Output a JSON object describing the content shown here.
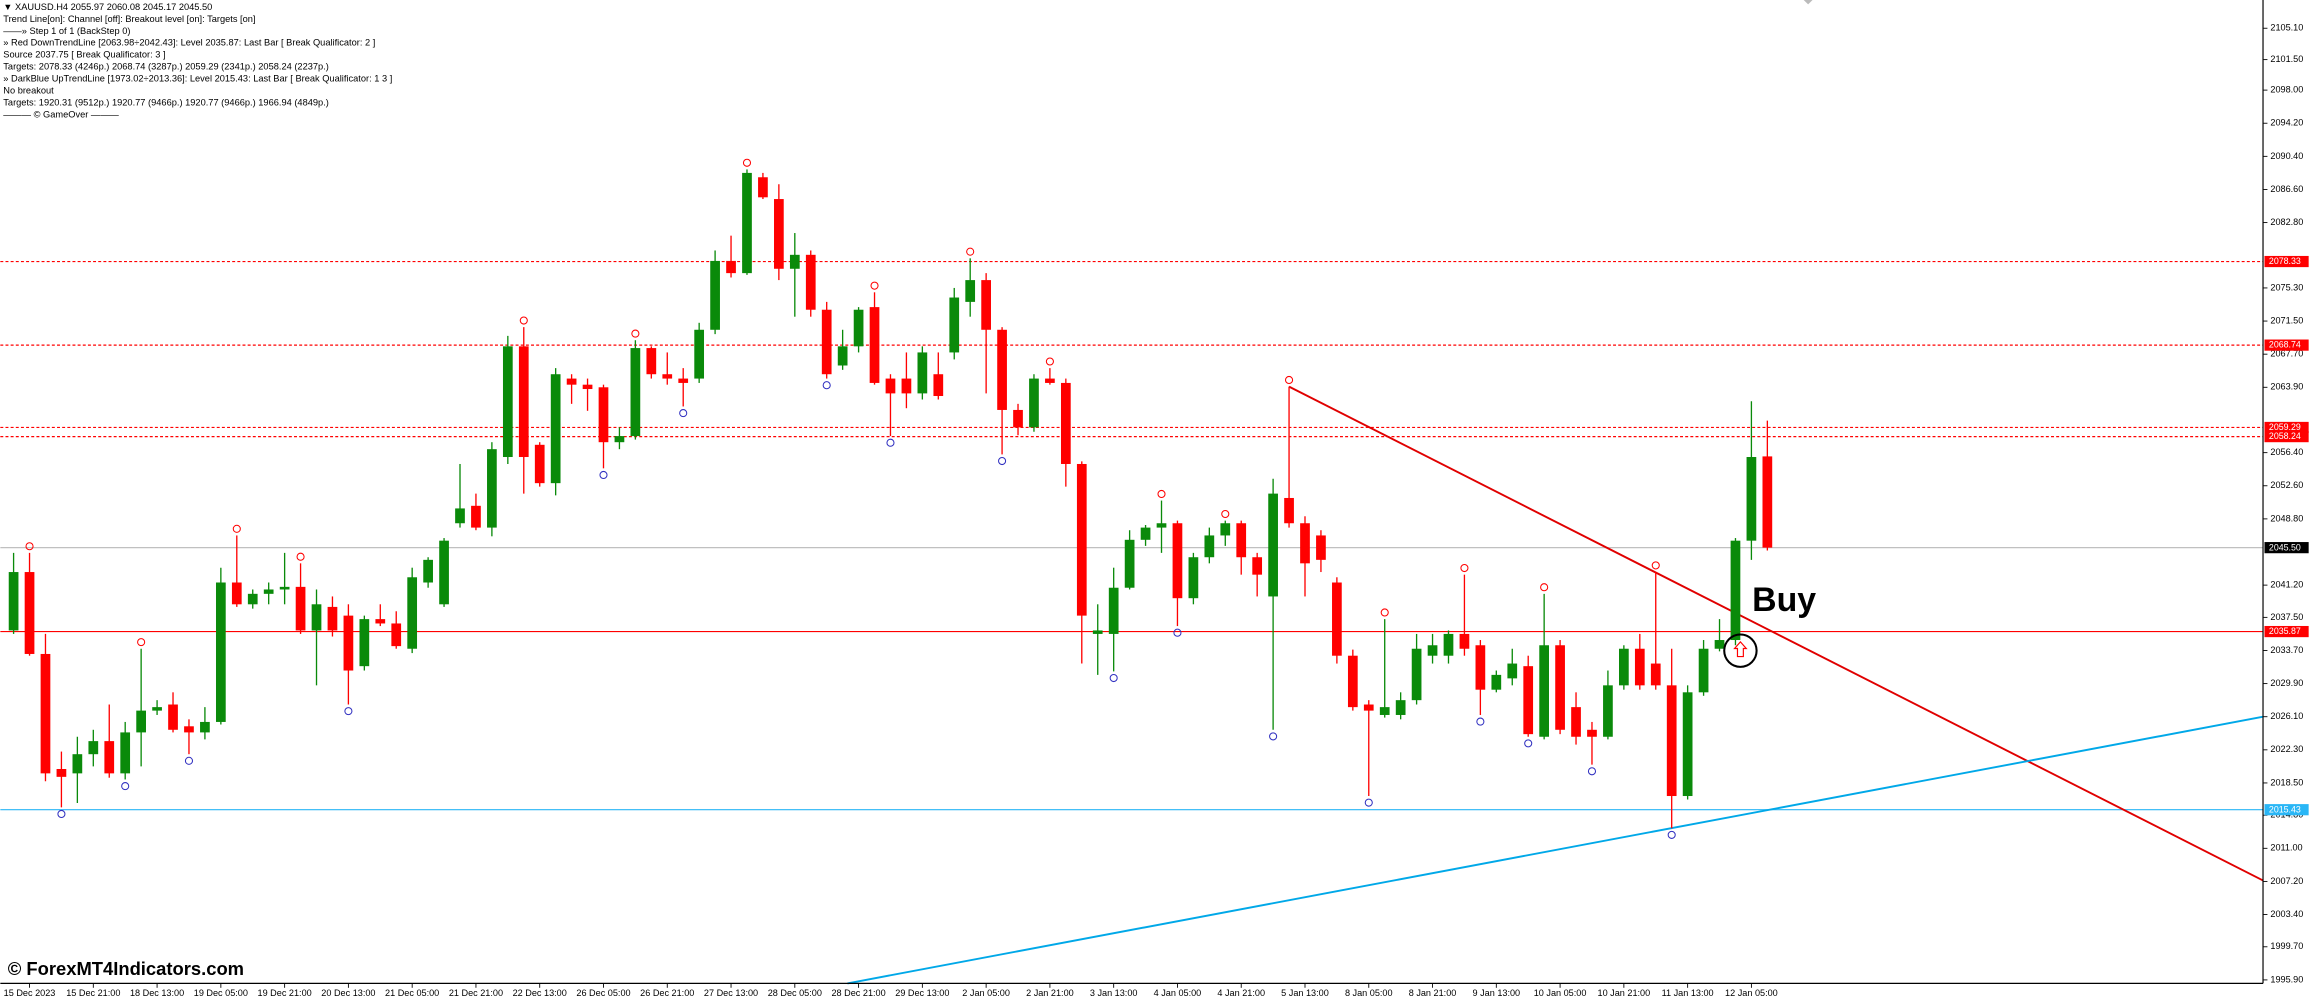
{
  "header": {
    "symbol_line": "▼ XAUUSD.H4  2055.97 2060.08 2045.17 2045.50",
    "info_lines": [
      "Trend Line[on]: Channel [off]: Breakout level [on]: Targets [on]",
      "——» Step 1 of 1 (BackStep 0)",
      "» Red DownTrendLine [2063.98÷2042.43]: Level 2035.87: Last Bar [ Break Qualificator: 2 ]",
      "Source 2037.75 [ Break Qualificator: 3 ]",
      "Targets: 2078.33 (4246p.) 2068.74 (3287p.) 2059.29 (2341p.) 2058.24 (2237p.)",
      "» DarkBlue UpTrendLine [1973.02÷2013.36]: Level 2015.43: Last Bar [ Break Qualificator: 1 3 ]",
      "No breakout",
      "Targets: 1920.31 (9512p.) 1920.77 (9466p.) 1920.77 (9466p.) 1966.94 (4849p.)",
      "——— © GameOver ———"
    ]
  },
  "watermark": "© ForexMT4Indicators.com",
  "chart_data": {
    "type": "candlestick",
    "annotation": "Buy",
    "up_color": "#0a8a0a",
    "down_color": "#ff0000",
    "categories": [
      null,
      "15 Dec 2023",
      null,
      null,
      null,
      "15 Dec 21:00",
      null,
      null,
      null,
      "18 Dec 13:00",
      null,
      null,
      null,
      "19 Dec 05:00",
      null,
      null,
      null,
      "19 Dec 21:00",
      null,
      null,
      null,
      "20 Dec 13:00",
      null,
      null,
      null,
      "21 Dec 05:00",
      null,
      null,
      null,
      "21 Dec 21:00",
      null,
      null,
      null,
      "22 Dec 13:00",
      null,
      null,
      null,
      "26 Dec 05:00",
      null,
      null,
      null,
      "26 Dec 21:00",
      null,
      null,
      null,
      "27 Dec 13:00",
      null,
      null,
      null,
      "28 Dec 05:00",
      null,
      null,
      null,
      "28 Dec 21:00",
      null,
      null,
      null,
      "29 Dec 13:00",
      null,
      null,
      null,
      "2 Jan 05:00",
      null,
      null,
      null,
      "2 Jan 21:00",
      null,
      null,
      null,
      "3 Jan 13:00",
      null,
      null,
      null,
      "4 Jan 05:00",
      null,
      null,
      null,
      "4 Jan 21:00",
      null,
      null,
      null,
      "5 Jan 13:00",
      null,
      null,
      null,
      "8 Jan 05:00",
      null,
      null,
      null,
      "8 Jan 21:00",
      null,
      null,
      null,
      "9 Jan 13:00",
      null,
      null,
      null,
      "10 Jan 05:00",
      null,
      null,
      null,
      "10 Jan 21:00",
      null,
      null,
      null,
      "11 Jan 13:00",
      null,
      null,
      null,
      "12 Jan 05:00",
      null
    ],
    "open": [
      2036.0,
      2042.7,
      2033.3,
      2020.1,
      2019.6,
      2021.8,
      2023.3,
      2019.6,
      2024.3,
      2026.8,
      2027.5,
      2025.0,
      2024.3,
      2025.5,
      2041.5,
      2039.0,
      2040.2,
      2040.7,
      2041.0,
      2036.0,
      2038.7,
      2037.7,
      2031.9,
      2037.3,
      2036.8,
      2033.9,
      2041.5,
      2039.0,
      2048.3,
      2050.3,
      2047.8,
      2055.9,
      2068.6,
      2057.3,
      2052.9,
      2064.9,
      2064.2,
      2063.9,
      2057.6,
      2058.3,
      2068.4,
      2065.4,
      2064.9,
      2064.9,
      2070.5,
      2078.4,
      2077.0,
      2088.0,
      2085.5,
      2077.5,
      2079.1,
      2072.8,
      2066.4,
      2068.6,
      2073.1,
      2064.9,
      2064.9,
      2063.2,
      2065.4,
      2067.9,
      2073.7,
      2076.2,
      2070.5,
      2061.3,
      2059.3,
      2064.9,
      2064.4,
      2055.1,
      2035.6,
      2035.6,
      2040.9,
      2046.4,
      2047.8,
      2048.3,
      2039.7,
      2044.4,
      2046.9,
      2048.3,
      2044.4,
      2039.9,
      2051.2,
      2048.3,
      2046.9,
      2041.5,
      2033.1,
      2027.5,
      2026.3,
      2026.3,
      2028.0,
      2033.1,
      2033.1,
      2035.6,
      2034.3,
      2029.2,
      2030.5,
      2031.9,
      2023.8,
      2034.3,
      2027.2,
      2024.6,
      2023.8,
      2029.7,
      2033.9,
      2032.2,
      2029.7,
      2017.0,
      2028.9,
      2033.9,
      2034.9,
      2046.3,
      2055.97
    ],
    "high": [
      2044.9,
      2044.9,
      2035.6,
      2022.1,
      2023.8,
      2024.6,
      2027.5,
      2025.5,
      2033.9,
      2028.0,
      2028.9,
      2025.8,
      2027.2,
      2043.2,
      2046.9,
      2040.7,
      2041.5,
      2044.9,
      2043.7,
      2040.7,
      2039.9,
      2039.0,
      2037.7,
      2039.0,
      2038.2,
      2043.2,
      2044.4,
      2046.6,
      2055.1,
      2051.7,
      2057.6,
      2069.8,
      2070.8,
      2057.6,
      2066.1,
      2065.4,
      2064.9,
      2064.2,
      2059.3,
      2069.3,
      2068.6,
      2067.9,
      2066.1,
      2071.3,
      2079.6,
      2081.3,
      2088.9,
      2088.5,
      2087.2,
      2081.6,
      2079.6,
      2073.7,
      2070.5,
      2073.1,
      2074.8,
      2065.4,
      2067.9,
      2068.6,
      2067.9,
      2075.3,
      2078.7,
      2077.0,
      2070.8,
      2062.0,
      2065.4,
      2066.1,
      2064.9,
      2055.4,
      2039.0,
      2043.2,
      2047.5,
      2048.1,
      2050.9,
      2048.6,
      2044.9,
      2047.8,
      2048.6,
      2048.6,
      2044.9,
      2053.4,
      2063.98,
      2049.1,
      2047.5,
      2042.1,
      2033.8,
      2028.0,
      2037.3,
      2028.9,
      2035.6,
      2035.6,
      2036.0,
      2042.4,
      2034.9,
      2031.4,
      2033.9,
      2033.1,
      2040.2,
      2034.9,
      2028.9,
      2025.5,
      2031.4,
      2034.3,
      2035.6,
      2042.7,
      2033.9,
      2029.7,
      2034.9,
      2037.3,
      2046.6,
      2062.3,
      2060.08
    ],
    "low": [
      2035.6,
      2033.1,
      2018.7,
      2015.7,
      2016.2,
      2020.4,
      2019.1,
      2018.9,
      2020.4,
      2026.3,
      2024.3,
      2021.8,
      2023.5,
      2025.2,
      2038.7,
      2038.5,
      2039.0,
      2039.0,
      2035.6,
      2029.7,
      2035.3,
      2027.5,
      2031.4,
      2036.5,
      2033.9,
      2033.4,
      2040.9,
      2038.7,
      2047.8,
      2047.5,
      2046.8,
      2055.1,
      2051.7,
      2052.5,
      2051.5,
      2062.0,
      2061.2,
      2054.6,
      2056.8,
      2057.9,
      2064.9,
      2064.2,
      2061.7,
      2064.4,
      2070.0,
      2076.5,
      2076.8,
      2085.5,
      2076.2,
      2072.0,
      2072.0,
      2064.9,
      2065.9,
      2067.9,
      2064.2,
      2058.3,
      2061.5,
      2062.5,
      2062.5,
      2067.1,
      2072.0,
      2063.2,
      2056.2,
      2058.4,
      2058.8,
      2064.2,
      2052.5,
      2032.2,
      2030.9,
      2031.3,
      2040.7,
      2045.7,
      2044.9,
      2036.5,
      2039.0,
      2043.7,
      2045.7,
      2042.4,
      2039.9,
      2024.6,
      2047.8,
      2039.9,
      2042.7,
      2032.2,
      2026.8,
      2017.0,
      2026.0,
      2025.8,
      2027.5,
      2032.2,
      2032.2,
      2033.1,
      2026.3,
      2028.9,
      2029.7,
      2023.8,
      2023.5,
      2024.1,
      2022.9,
      2020.6,
      2023.5,
      2029.2,
      2029.2,
      2029.2,
      2013.3,
      2016.6,
      2028.5,
      2033.6,
      2034.3,
      2044.1,
      2045.17
    ],
    "close": [
      2042.7,
      2033.3,
      2019.6,
      2019.2,
      2021.8,
      2023.3,
      2019.6,
      2024.3,
      2026.8,
      2027.2,
      2024.6,
      2024.3,
      2025.5,
      2041.5,
      2039.0,
      2040.2,
      2040.7,
      2041.0,
      2036.0,
      2039.0,
      2036.0,
      2031.4,
      2037.3,
      2036.8,
      2034.2,
      2042.1,
      2044.1,
      2046.3,
      2050.0,
      2047.8,
      2056.8,
      2068.6,
      2055.9,
      2052.9,
      2065.4,
      2064.2,
      2063.7,
      2057.6,
      2058.3,
      2068.4,
      2065.4,
      2064.9,
      2064.4,
      2070.5,
      2078.4,
      2077.0,
      2088.5,
      2085.7,
      2077.5,
      2079.1,
      2072.8,
      2065.4,
      2068.6,
      2072.8,
      2064.4,
      2063.2,
      2063.2,
      2067.9,
      2062.9,
      2074.2,
      2076.2,
      2070.5,
      2061.3,
      2059.3,
      2064.9,
      2064.4,
      2055.1,
      2037.7,
      2036.0,
      2040.9,
      2046.4,
      2047.8,
      2048.3,
      2039.7,
      2044.4,
      2046.9,
      2048.3,
      2044.4,
      2042.4,
      2051.7,
      2048.3,
      2043.7,
      2044.1,
      2033.1,
      2027.2,
      2026.8,
      2027.2,
      2028.0,
      2033.9,
      2034.3,
      2035.6,
      2033.9,
      2029.2,
      2030.9,
      2032.2,
      2024.1,
      2034.3,
      2024.6,
      2023.8,
      2023.8,
      2029.7,
      2033.9,
      2029.7,
      2029.7,
      2017.0,
      2028.9,
      2033.9,
      2034.9,
      2046.3,
      2055.9,
      2045.5
    ],
    "upper_markers": {
      "color": "#ff0000",
      "x": [
        1,
        8,
        14,
        18,
        32,
        39,
        46,
        54,
        60,
        65,
        72,
        76,
        80,
        86,
        91,
        96,
        103
      ],
      "values": [
        2044.9,
        2033.9,
        2046.9,
        2043.7,
        2070.8,
        2069.3,
        2088.9,
        2074.8,
        2078.7,
        2066.1,
        2050.9,
        2048.6,
        2063.98,
        2037.3,
        2042.4,
        2040.2,
        2042.7
      ]
    },
    "lower_markers": {
      "color": "#3030c0",
      "x": [
        3,
        7,
        11,
        21,
        37,
        42,
        51,
        55,
        62,
        69,
        73,
        79,
        85,
        92,
        95,
        99,
        104
      ],
      "values": [
        2015.7,
        2018.9,
        2021.8,
        2027.5,
        2054.6,
        2061.7,
        2064.9,
        2058.3,
        2056.2,
        2031.3,
        2036.5,
        2024.6,
        2017.0,
        2026.3,
        2023.8,
        2020.6,
        2013.3
      ]
    },
    "trendlines": [
      {
        "color": "#e00000",
        "x": [
          80,
          141.1
        ],
        "y": [
          2063.98,
          2007.3
        ]
      },
      {
        "color": "#00a8e8",
        "x": [
          52.3,
          141.1
        ],
        "y": [
          1995.5,
          2026.1
        ]
      }
    ],
    "levels": [
      {
        "value": 2078.33,
        "color": "#ff0000",
        "style": "dashed"
      },
      {
        "value": 2068.74,
        "color": "#ff0000",
        "style": "dashed"
      },
      {
        "value": 2059.29,
        "color": "#ff0000",
        "style": "dashed"
      },
      {
        "value": 2058.24,
        "color": "#ff0000",
        "style": "dashed"
      },
      {
        "value": 2045.5,
        "label": "2045.50",
        "color": "#c0c0c0",
        "label_color": "#000000",
        "style": "solid"
      },
      {
        "value": 2035.87,
        "color": "#ff0000",
        "style": "solid"
      },
      {
        "value": 2015.43,
        "color": "#29b6f6",
        "style": "solid"
      }
    ],
    "ylim": [
      1995.5,
      2108.34
    ],
    "yticks": [
      {
        "value": 1995.9,
        "label": "1995.90"
      },
      {
        "value": 1999.7,
        "label": "1999.70"
      },
      {
        "value": 2003.4,
        "label": "2003.40"
      },
      {
        "value": 2007.2,
        "label": "2007.20"
      },
      {
        "value": 2011.0,
        "label": "2011.00"
      },
      {
        "value": 2014.8,
        "label": "2014.80"
      },
      {
        "value": 2018.5,
        "label": "2018.50"
      },
      {
        "value": 2022.3,
        "label": "2022.30"
      },
      {
        "value": 2026.1,
        "label": "2026.10"
      },
      {
        "value": 2029.9,
        "label": "2029.90"
      },
      {
        "value": 2033.7,
        "label": "2033.70"
      },
      {
        "value": 2037.5,
        "label": "2037.50"
      },
      {
        "value": 2041.2,
        "label": "2041.20"
      },
      {
        "value": 2048.8,
        "label": "2048.80"
      },
      {
        "value": 2052.6,
        "label": "2052.60"
      },
      {
        "value": 2056.4,
        "label": "2056.40"
      },
      {
        "value": 2063.9,
        "label": "2063.90"
      },
      {
        "value": 2067.7,
        "label": "2067.70"
      },
      {
        "value": 2071.5,
        "label": "2071.50"
      },
      {
        "value": 2075.3,
        "label": "2075.30"
      },
      {
        "value": 2082.8,
        "label": "2082.80"
      },
      {
        "value": 2086.6,
        "label": "2086.60"
      },
      {
        "value": 2090.4,
        "label": "2090.40"
      },
      {
        "value": 2094.2,
        "label": "2094.20"
      },
      {
        "value": 2098.0,
        "label": "2098.00"
      },
      {
        "value": 2101.5,
        "label": "2101.50"
      },
      {
        "value": 2105.1,
        "label": "2105.10"
      }
    ],
    "grid": false
  }
}
